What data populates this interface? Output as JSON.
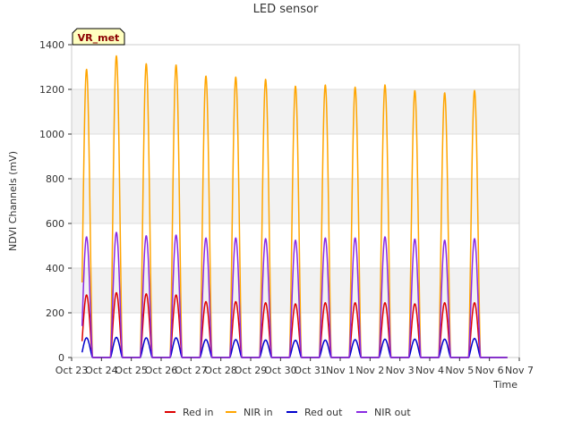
{
  "chart_data": {
    "type": "line",
    "title": "LED sensor",
    "site_label": "VR_met",
    "xlabel": "Time",
    "ylabel": "NDVI Channels (mV)",
    "ylim": [
      0,
      1400
    ],
    "yticks": [
      0,
      200,
      400,
      600,
      800,
      1000,
      1200,
      1400
    ],
    "xlim": [
      0,
      15
    ],
    "xticks": [
      {
        "x": 0,
        "label": "Oct 23"
      },
      {
        "x": 1,
        "label": "Oct 24"
      },
      {
        "x": 2,
        "label": "Oct 25"
      },
      {
        "x": 3,
        "label": "Oct 26"
      },
      {
        "x": 4,
        "label": "Oct 27"
      },
      {
        "x": 5,
        "label": "Oct 28"
      },
      {
        "x": 6,
        "label": "Oct 29"
      },
      {
        "x": 7,
        "label": "Oct 30"
      },
      {
        "x": 8,
        "label": "Oct 31"
      },
      {
        "x": 9,
        "label": "Nov 1"
      },
      {
        "x": 10,
        "label": "Nov 2"
      },
      {
        "x": 11,
        "label": "Nov 3"
      },
      {
        "x": 12,
        "label": "Nov 4"
      },
      {
        "x": 13,
        "label": "Nov 5"
      },
      {
        "x": 14,
        "label": "Nov 6"
      },
      {
        "x": 15,
        "label": "Nov 7"
      }
    ],
    "grid": true,
    "legend_position": "bottom",
    "peak_days": [
      "Oct 23",
      "Oct 24",
      "Oct 25",
      "Oct 26",
      "Oct 27",
      "Oct 28",
      "Oct 29",
      "Oct 30",
      "Oct 31",
      "Nov 1",
      "Nov 2",
      "Nov 3",
      "Nov 4",
      "Nov 5"
    ],
    "series": [
      {
        "name": "Red in",
        "color": "#dd0000",
        "daily_peaks": [
          280,
          290,
          285,
          280,
          250,
          250,
          245,
          240,
          245,
          245,
          245,
          240,
          245,
          245
        ]
      },
      {
        "name": "NIR in",
        "color": "#ffa500",
        "daily_peaks": [
          1290,
          1350,
          1315,
          1310,
          1260,
          1255,
          1245,
          1215,
          1220,
          1210,
          1220,
          1195,
          1185,
          1195
        ]
      },
      {
        "name": "Red out",
        "color": "#0000cc",
        "daily_peaks": [
          88,
          90,
          88,
          88,
          80,
          80,
          78,
          77,
          78,
          80,
          82,
          82,
          82,
          85
        ]
      },
      {
        "name": "NIR out",
        "color": "#8a2be2",
        "daily_peaks": [
          540,
          560,
          545,
          548,
          535,
          535,
          532,
          525,
          535,
          535,
          540,
          530,
          525,
          532
        ]
      }
    ]
  }
}
